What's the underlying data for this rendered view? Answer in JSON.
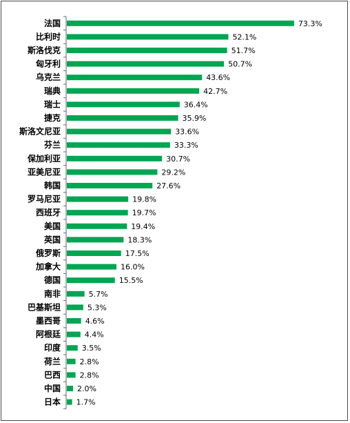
{
  "chart_data": {
    "type": "bar",
    "orientation": "horizontal",
    "bar_color": "#00a651",
    "axis_line_color": "#666666",
    "xlim": [
      0,
      80
    ],
    "value_suffix": "%",
    "categories": [
      "法国",
      "比利时",
      "斯洛伐克",
      "匈牙利",
      "乌克兰",
      "瑞典",
      "瑞士",
      "捷克",
      "斯洛文尼亚",
      "芬兰",
      "保加利亚",
      "亚美尼亚",
      "韩国",
      "罗马尼亚",
      "西班牙",
      "美国",
      "英国",
      "俄罗斯",
      "加拿大",
      "德国",
      "南非",
      "巴基斯坦",
      "墨西哥",
      "阿根廷",
      "印度",
      "荷兰",
      "巴西",
      "中国",
      "日本"
    ],
    "values": [
      73.3,
      52.1,
      51.7,
      50.7,
      43.6,
      42.7,
      36.4,
      35.9,
      33.6,
      33.3,
      30.7,
      29.2,
      27.6,
      19.8,
      19.7,
      19.4,
      18.3,
      17.5,
      16.0,
      15.5,
      5.7,
      5.3,
      4.6,
      4.4,
      3.5,
      2.8,
      2.8,
      2.0,
      1.7
    ],
    "value_labels": [
      "73.3%",
      "52.1%",
      "51.7%",
      "50.7%",
      "43.6%",
      "42.7%",
      "36.4%",
      "35.9%",
      "33.6%",
      "33.3%",
      "30.7%",
      "29.2%",
      "27.6%",
      "19.8%",
      "19.7%",
      "19.4%",
      "18.3%",
      "17.5%",
      "16.0%",
      "15.5%",
      "5.7%",
      "5.3%",
      "4.6%",
      "4.4%",
      "3.5%",
      "2.8%",
      "2.8%",
      "2.0%",
      "1.7%"
    ]
  }
}
